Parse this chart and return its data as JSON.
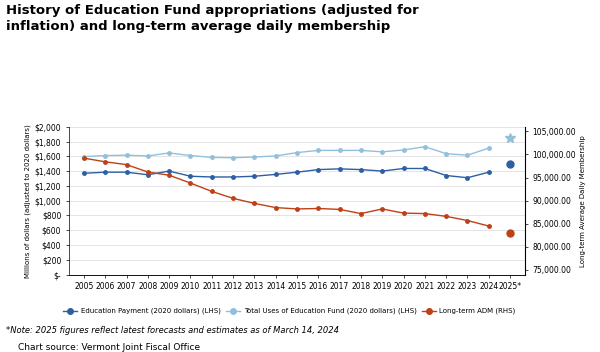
{
  "title": "History of Education Fund appropriations (adjusted for\ninflation) and long-term average daily membership",
  "years": [
    2005,
    2006,
    2007,
    2008,
    2009,
    2010,
    2011,
    2012,
    2013,
    2014,
    2015,
    2016,
    2017,
    2018,
    2019,
    2020,
    2021,
    2022,
    2023,
    2024,
    2025
  ],
  "education_payment": [
    1370,
    1385,
    1385,
    1350,
    1400,
    1330,
    1320,
    1320,
    1330,
    1355,
    1385,
    1420,
    1430,
    1420,
    1400,
    1435,
    1435,
    1340,
    1310,
    1385,
    1490
  ],
  "total_uses": [
    1595,
    1610,
    1615,
    1605,
    1645,
    1610,
    1585,
    1580,
    1590,
    1605,
    1650,
    1680,
    1680,
    1680,
    1660,
    1685,
    1730,
    1635,
    1615,
    1710,
    1850
  ],
  "long_term_adm": [
    99200,
    98400,
    97800,
    96200,
    95500,
    93800,
    92000,
    90500,
    89400,
    88500,
    88200,
    88300,
    88100,
    87200,
    88200,
    87300,
    87200,
    86600,
    85700,
    84500,
    83700
  ],
  "adm_2025_separate": 83100,
  "edu_color": "#2E5FA3",
  "total_uses_color": "#92C0DC",
  "adm_color": "#BF4017",
  "ylabel_left": "Millions of dollars (adjusted to 2020 dollars)",
  "ylabel_right": "Long-term Average Daily Membership",
  "ylim_left": [
    0,
    2000
  ],
  "ylim_right": [
    74000,
    106000
  ],
  "yticks_left": [
    0,
    200,
    400,
    600,
    800,
    1000,
    1200,
    1400,
    1600,
    1800,
    2000
  ],
  "ytick_labels_left": [
    "$-",
    "$200",
    "$400",
    "$600",
    "$800",
    "$1,000",
    "$1,200",
    "$1,400",
    "$1,600",
    "$1,800",
    "$2,000"
  ],
  "yticks_right": [
    75000,
    80000,
    85000,
    90000,
    95000,
    100000,
    105000
  ],
  "ytick_labels_right": [
    "75,000.00",
    "80,000.00",
    "85,000.00",
    "90,000.00",
    "95,000.00",
    "100,000.00",
    "105,000.00"
  ],
  "note": "*Note: 2025 figures reflect latest forecasts and estimates as of March 14, 2024",
  "source": "Chart source: Vermont Joint Fiscal Office",
  "legend": [
    "Education Payment (2020 dollars) (LHS)",
    "Total Uses of Education Fund (2020 dollars) (LHS)",
    "Long-term ADM (RHS)"
  ],
  "bg_color": "#FFFFFF",
  "grid_color": "#D9D9D9"
}
